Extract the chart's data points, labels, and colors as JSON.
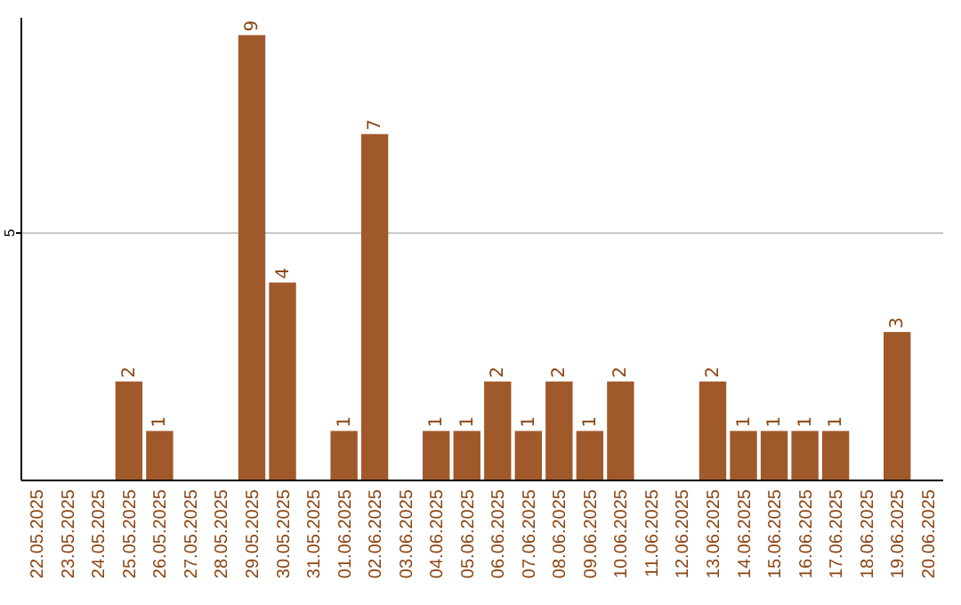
{
  "chart_data": {
    "type": "bar",
    "categories": [
      "22.05.2025",
      "23.05.2025",
      "24.05.2025",
      "25.05.2025",
      "26.05.2025",
      "27.05.2025",
      "28.05.2025",
      "29.05.2025",
      "30.05.2025",
      "31.05.2025",
      "01.06.2025",
      "02.06.2025",
      "03.06.2025",
      "04.06.2025",
      "05.06.2025",
      "06.06.2025",
      "07.06.2025",
      "08.06.2025",
      "09.06.2025",
      "10.06.2025",
      "11.06.2025",
      "12.06.2025",
      "13.06.2025",
      "14.06.2025",
      "15.06.2025",
      "16.06.2025",
      "17.06.2025",
      "18.06.2025",
      "19.06.2025",
      "20.06.2025"
    ],
    "values": [
      0,
      0,
      0,
      2,
      1,
      0,
      0,
      9,
      4,
      0,
      1,
      7,
      0,
      1,
      1,
      2,
      1,
      2,
      1,
      2,
      0,
      0,
      2,
      1,
      1,
      1,
      1,
      0,
      3,
      0
    ],
    "value_labels": [
      null,
      null,
      null,
      "2",
      "1",
      null,
      null,
      "9",
      "4",
      null,
      "1",
      "7",
      null,
      "1",
      "1",
      "2",
      "1",
      "2",
      "1",
      "2",
      null,
      null,
      "2",
      "1",
      "1",
      "1",
      "1",
      null,
      "3",
      null
    ],
    "color": "#a0592a",
    "ylim": [
      0,
      9.35
    ],
    "yticks": [
      5
    ],
    "grid": "y"
  }
}
